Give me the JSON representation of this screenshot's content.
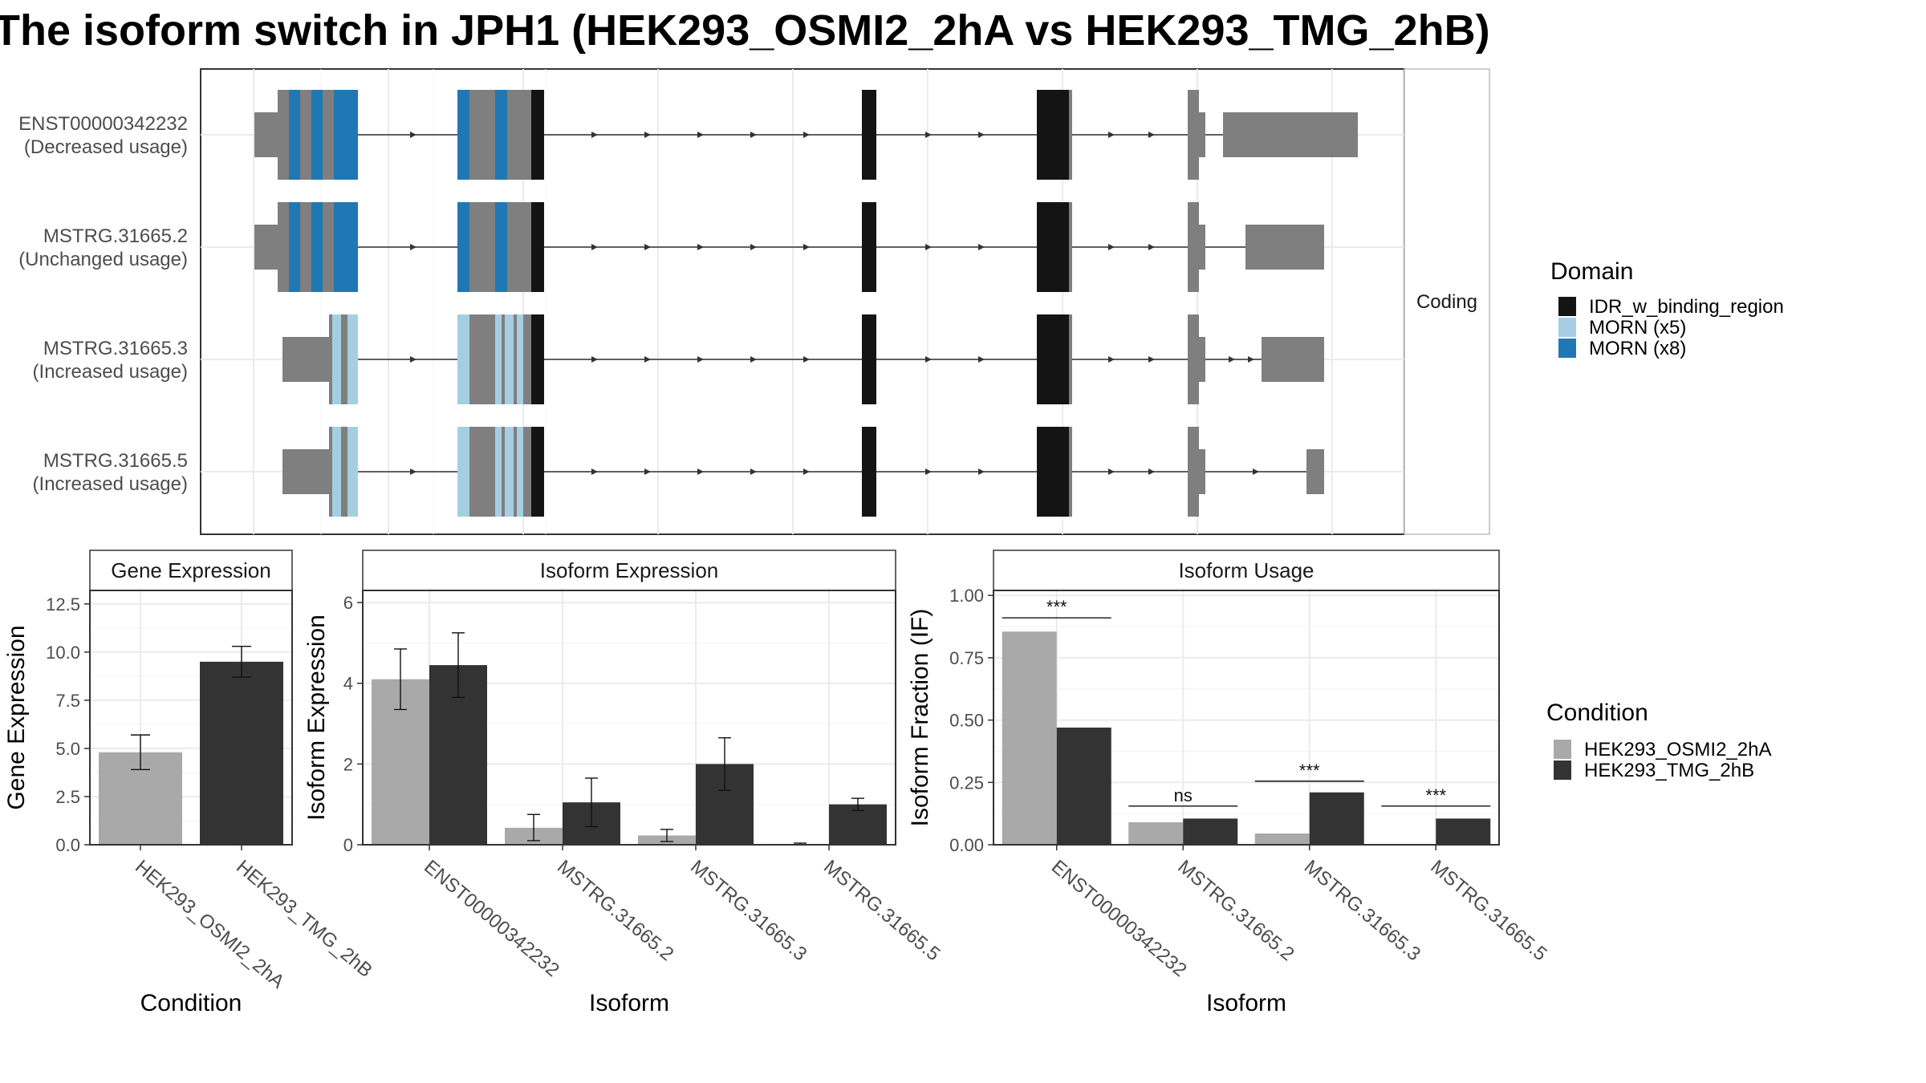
{
  "title": "The isoform switch in JPH1 (HEK293_OSMI2_2hA vs HEK293_TMG_2hB)",
  "colors": {
    "IDR": "#141414",
    "MORN5": "#a6cee3",
    "MORN8": "#1f78b4",
    "exon": "#7f7f7f",
    "condA": "#a9a9a9",
    "condB": "#333333"
  },
  "structure": {
    "strip_label": "Coding",
    "isoforms": [
      {
        "id": "ENST00000342232",
        "usage": "(Decreased usage)"
      },
      {
        "id": "MSTRG.31665.2",
        "usage": "(Unchanged usage)"
      },
      {
        "id": "MSTRG.31665.3",
        "usage": "(Increased usage)"
      },
      {
        "id": "MSTRG.31665.5",
        "usage": "(Increased usage)"
      }
    ]
  },
  "domain_legend": {
    "title": "Domain",
    "items": [
      {
        "label": "IDR_w_binding_region",
        "color_key": "IDR"
      },
      {
        "label": "MORN (x5)",
        "color_key": "MORN5"
      },
      {
        "label": "MORN (x8)",
        "color_key": "MORN8"
      }
    ]
  },
  "condition_legend": {
    "title": "Condition",
    "items": [
      {
        "label": "HEK293_OSMI2_2hA",
        "color_key": "condA"
      },
      {
        "label": "HEK293_TMG_2hB",
        "color_key": "condB"
      }
    ]
  },
  "chart_data": [
    {
      "type": "bar",
      "title": "Gene Expression",
      "xlabel": "Condition",
      "ylabel": "Gene Expression",
      "ylim": [
        0,
        13.2
      ],
      "yticks": [
        "0.0",
        "2.5",
        "5.0",
        "7.5",
        "10.0",
        "12.5"
      ],
      "categories": [
        "HEK293_OSMI2_2hA",
        "HEK293_TMG_2hB"
      ],
      "values": [
        4.8,
        9.5
      ],
      "error_low": [
        3.9,
        8.7
      ],
      "error_high": [
        5.7,
        10.3
      ]
    },
    {
      "type": "bar",
      "title": "Isoform Expression",
      "xlabel": "Isoform",
      "ylabel": "Isoform Expression",
      "ylim": [
        0,
        6.3
      ],
      "yticks": [
        "0",
        "2",
        "4",
        "6"
      ],
      "categories": [
        "ENST00000342232",
        "MSTRG.31665.2",
        "MSTRG.31665.3",
        "MSTRG.31665.5"
      ],
      "series": [
        {
          "name": "HEK293_OSMI2_2hA",
          "values": [
            4.1,
            0.42,
            0.23,
            0.02
          ],
          "error_low": [
            3.35,
            0.1,
            0.08,
            0.0
          ],
          "error_high": [
            4.85,
            0.75,
            0.38,
            0.04
          ]
        },
        {
          "name": "HEK293_TMG_2hB",
          "values": [
            4.45,
            1.05,
            2.0,
            1.0
          ],
          "error_low": [
            3.65,
            0.45,
            1.35,
            0.85
          ],
          "error_high": [
            5.25,
            1.65,
            2.65,
            1.15
          ]
        }
      ]
    },
    {
      "type": "bar",
      "title": "Isoform Usage",
      "xlabel": "Isoform",
      "ylabel": "Isoform Fraction (IF)",
      "ylim": [
        0,
        1.02
      ],
      "yticks": [
        "0.00",
        "0.25",
        "0.50",
        "0.75",
        "1.00"
      ],
      "categories": [
        "ENST00000342232",
        "MSTRG.31665.2",
        "MSTRG.31665.3",
        "MSTRG.31665.5"
      ],
      "series": [
        {
          "name": "HEK293_OSMI2_2hA",
          "values": [
            0.855,
            0.09,
            0.045,
            0.0
          ]
        },
        {
          "name": "HEK293_TMG_2hB",
          "values": [
            0.47,
            0.105,
            0.21,
            0.105
          ]
        }
      ],
      "significance": [
        "***",
        "ns",
        "***",
        "***"
      ],
      "significance_y": [
        0.91,
        0.155,
        0.255,
        0.155
      ]
    }
  ]
}
